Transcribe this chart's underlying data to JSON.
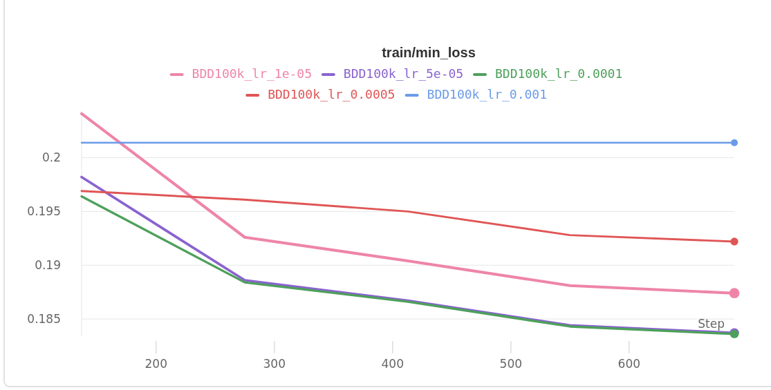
{
  "chart_data": {
    "type": "line",
    "title": "train/min_loss",
    "xlabel": "Step",
    "x": [
      137,
      275,
      413,
      550,
      689
    ],
    "series": [
      {
        "name": "BDD100k_lr_1e-05",
        "color": "#ee85a8",
        "values": [
          0.2041,
          0.1926,
          0.1904,
          0.1881,
          0.1874
        ]
      },
      {
        "name": "BDD100k_lr_5e-05",
        "color": "#8a63cf",
        "values": [
          0.1982,
          0.1886,
          0.1867,
          0.1844,
          0.1837
        ]
      },
      {
        "name": "BDD100k_lr_0.0001",
        "color": "#4da05a",
        "values": [
          0.1964,
          0.1884,
          0.1866,
          0.1843,
          0.1836
        ]
      },
      {
        "name": "BDD100k_lr_0.0005",
        "color": "#e05555",
        "values": [
          0.1969,
          0.1961,
          0.195,
          0.1928,
          0.1922
        ]
      },
      {
        "name": "BDD100k_lr_0.001",
        "color": "#6b9be8",
        "values": [
          0.2014,
          0.2014,
          0.2014,
          0.2014,
          0.2014
        ]
      }
    ],
    "xlim": [
      137,
      689
    ],
    "xticks": [
      200,
      300,
      400,
      500,
      600
    ],
    "ylim": [
      0.1834,
      0.2044
    ],
    "yticks": [
      0.185,
      0.19,
      0.195,
      0.2
    ],
    "grid": "y",
    "legend": "top"
  }
}
